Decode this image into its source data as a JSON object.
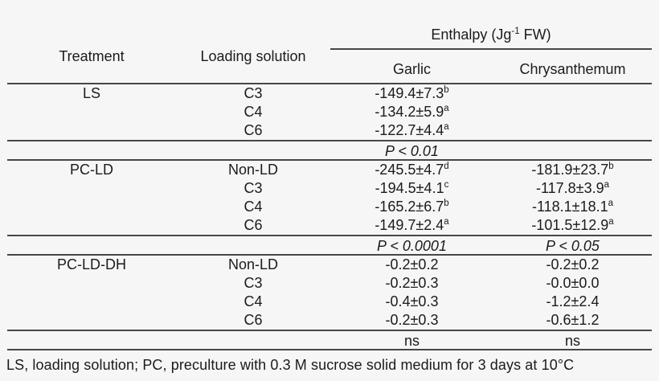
{
  "page": {
    "background_color": "#f6f6f6",
    "text_color": "#1b1b1b",
    "rule_color": "#474747"
  },
  "header": {
    "treatment": "Treatment",
    "loading_solution": "Loading solution",
    "enthalpy_prefix": "Enthalpy (Jg",
    "enthalpy_sup": "-1",
    "enthalpy_suffix": " FW)",
    "garlic": "Garlic",
    "chrysanthemum": "Chrysanthemum"
  },
  "sections": [
    {
      "treatment": "LS",
      "rows": [
        {
          "loading": "C3",
          "garlic": "-149.4±7.3",
          "garlic_sup": "b",
          "chrys": "",
          "chrys_sup": ""
        },
        {
          "loading": "C4",
          "garlic": "-134.2±5.9",
          "garlic_sup": "a",
          "chrys": "",
          "chrys_sup": ""
        },
        {
          "loading": "C6",
          "garlic": "-122.7±4.4",
          "garlic_sup": "a",
          "chrys": "",
          "chrys_sup": ""
        }
      ],
      "stats": {
        "garlic": "P < 0.01",
        "chrys": ""
      }
    },
    {
      "treatment": "PC-LD",
      "rows": [
        {
          "loading": "Non-LD",
          "garlic": "-245.5±4.7",
          "garlic_sup": "d",
          "chrys": "-181.9±23.7",
          "chrys_sup": "b"
        },
        {
          "loading": "C3",
          "garlic": "-194.5±4.1",
          "garlic_sup": "c",
          "chrys": "-117.8±3.9",
          "chrys_sup": "a"
        },
        {
          "loading": "C4",
          "garlic": "-165.2±6.7",
          "garlic_sup": "b",
          "chrys": "-118.1±18.1",
          "chrys_sup": "a"
        },
        {
          "loading": "C6",
          "garlic": "-149.7±2.4",
          "garlic_sup": "a",
          "chrys": "-101.5±12.9",
          "chrys_sup": "a"
        }
      ],
      "stats": {
        "garlic": "P < 0.0001",
        "chrys": "P < 0.05"
      }
    },
    {
      "treatment": "PC-LD-DH",
      "rows": [
        {
          "loading": "Non-LD",
          "garlic": "-0.2±0.2",
          "garlic_sup": "",
          "chrys": "-0.2±0.2",
          "chrys_sup": ""
        },
        {
          "loading": "C3",
          "garlic": "-0.2±0.3",
          "garlic_sup": "",
          "chrys": "-0.0±0.0",
          "chrys_sup": ""
        },
        {
          "loading": "C4",
          "garlic": "-0.4±0.3",
          "garlic_sup": "",
          "chrys": "-1.2±2.4",
          "chrys_sup": ""
        },
        {
          "loading": "C6",
          "garlic": "-0.2±0.3",
          "garlic_sup": "",
          "chrys": "-0.6±1.2",
          "chrys_sup": ""
        }
      ],
      "stats": {
        "garlic": "ns",
        "chrys": "ns"
      }
    }
  ],
  "footnote": "LS, loading solution; PC, preculture with 0.3 M sucrose solid medium for 3 days at 10°C"
}
